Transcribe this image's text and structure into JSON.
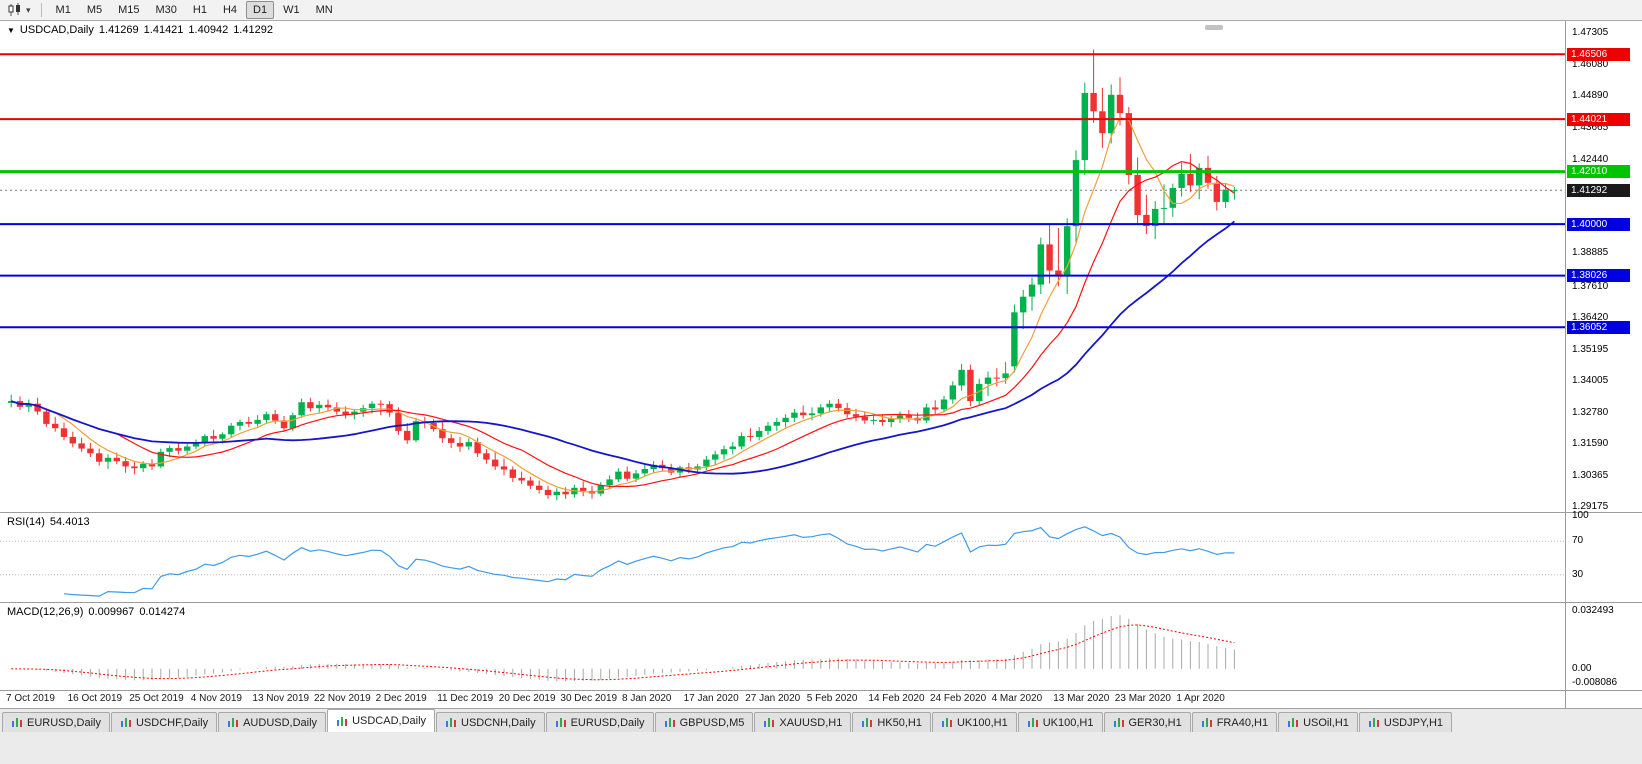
{
  "toolbar": {
    "timeframes": [
      "M1",
      "M5",
      "M15",
      "M30",
      "H1",
      "H4",
      "D1",
      "W1",
      "MN"
    ],
    "active_timeframe": "D1",
    "chart_type_icon": "candlestick-chart"
  },
  "chart": {
    "symbol_timeframe": "USDCAD,Daily",
    "open": "1.41269",
    "high": "1.41421",
    "low": "1.40942",
    "close": "1.41292"
  },
  "rsi": {
    "label": "RSI(14)",
    "value": "54.4013",
    "axis": [
      "100",
      "70",
      "30"
    ],
    "levels": [
      70,
      30
    ],
    "range": [
      0,
      100
    ],
    "color": "#3E9BEB"
  },
  "macd": {
    "label": "MACD(12,26,9)",
    "main_value": "0.009967",
    "signal_value": "0.014274",
    "axis": [
      "0.032493",
      "0.00",
      "-0.008086"
    ],
    "range": [
      -0.0096,
      0.0346
    ],
    "histogram_color": "#a8a8a8",
    "signal_color": "#FF0000"
  },
  "price_axis": {
    "regular": [
      "1.47305",
      "1.46080",
      "1.44890",
      "1.43665",
      "1.42440",
      "1.38885",
      "1.37610",
      "1.36420",
      "1.35195",
      "1.34005",
      "1.32780",
      "1.31590",
      "1.30365",
      "1.29175"
    ],
    "badges": [
      {
        "value": "1.46506",
        "color": "#EE0000",
        "text": "#ffffff"
      },
      {
        "value": "1.44021",
        "color": "#EE0000",
        "text": "#ffffff"
      },
      {
        "value": "1.42010",
        "color": "#00C400",
        "text": "#ffffff"
      },
      {
        "value": "1.41292",
        "color": "#1a1a1a",
        "text": "#ffffff"
      },
      {
        "value": "1.40000",
        "color": "#0000E0",
        "text": "#ffffff"
      },
      {
        "value": "1.38026",
        "color": "#0000E0",
        "text": "#ffffff"
      },
      {
        "value": "1.36052",
        "color": "#0000E0",
        "text": "#ffffff"
      }
    ]
  },
  "levels": [
    {
      "price": 1.46506,
      "color": "#EE0000",
      "width": 2
    },
    {
      "price": 1.44021,
      "color": "#EE0000",
      "width": 2
    },
    {
      "price": 1.4201,
      "color": "#00C400",
      "width": 3
    },
    {
      "price": 1.4,
      "color": "#0000E0",
      "width": 2
    },
    {
      "price": 1.38026,
      "color": "#0000E0",
      "width": 2
    },
    {
      "price": 1.36052,
      "color": "#0000E0",
      "width": 2
    }
  ],
  "bid": {
    "price": 1.41292,
    "label": "1.41292"
  },
  "chart_data": {
    "type": "candlestick",
    "symbol": "USDCAD",
    "timeframe": "Daily",
    "price_range": [
      1.2905,
      1.477
    ],
    "up_color": "#00B24B",
    "down_color": "#F03232",
    "rsi_period": 14,
    "macd_params": {
      "fast": 12,
      "slow": 26,
      "signal": 9
    },
    "moving_averages": [
      {
        "name": "ma-fast-line",
        "period": 6,
        "color": "#F0A038",
        "width": 1.2
      },
      {
        "name": "ma-mid-line",
        "period": 13,
        "color": "#FF1010",
        "width": 1.2
      },
      {
        "name": "ma-slow-line",
        "period": 30,
        "color": "#1616C8",
        "width": 1.8
      }
    ],
    "x_labels": [
      {
        "t": "7 Oct 2019",
        "i": 0
      },
      {
        "t": "16 Oct 2019",
        "i": 7
      },
      {
        "t": "25 Oct 2019",
        "i": 14
      },
      {
        "t": "4 Nov 2019",
        "i": 21
      },
      {
        "t": "13 Nov 2019",
        "i": 28
      },
      {
        "t": "22 Nov 2019",
        "i": 35
      },
      {
        "t": "2 Dec 2019",
        "i": 42
      },
      {
        "t": "11 Dec 2019",
        "i": 49
      },
      {
        "t": "20 Dec 2019",
        "i": 56
      },
      {
        "t": "30 Dec 2019",
        "i": 63
      },
      {
        "t": "8 Jan 2020",
        "i": 70
      },
      {
        "t": "17 Jan 2020",
        "i": 77
      },
      {
        "t": "27 Jan 2020",
        "i": 84
      },
      {
        "t": "5 Feb 2020",
        "i": 91
      },
      {
        "t": "14 Feb 2020",
        "i": 98
      },
      {
        "t": "24 Feb 2020",
        "i": 105
      },
      {
        "t": "4 Mar 2020",
        "i": 112
      },
      {
        "t": "13 Mar 2020",
        "i": 119
      },
      {
        "t": "23 Mar 2020",
        "i": 126
      },
      {
        "t": "1 Apr 2020",
        "i": 133
      }
    ],
    "candles": [
      [
        1.3315,
        1.3347,
        1.3298,
        1.3322
      ],
      [
        1.3322,
        1.334,
        1.3288,
        1.33
      ],
      [
        1.33,
        1.3328,
        1.328,
        1.3312
      ],
      [
        1.3312,
        1.3335,
        1.327,
        1.3282
      ],
      [
        1.3282,
        1.3295,
        1.3222,
        1.3235
      ],
      [
        1.3235,
        1.3262,
        1.3205,
        1.3218
      ],
      [
        1.3218,
        1.324,
        1.3172,
        1.3185
      ],
      [
        1.3185,
        1.3205,
        1.3145,
        1.316
      ],
      [
        1.316,
        1.3182,
        1.3128,
        1.314
      ],
      [
        1.314,
        1.3162,
        1.3108,
        1.3122
      ],
      [
        1.3122,
        1.314,
        1.3075,
        1.309
      ],
      [
        1.309,
        1.3118,
        1.3062,
        1.3105
      ],
      [
        1.3105,
        1.3125,
        1.308,
        1.3092
      ],
      [
        1.3092,
        1.3108,
        1.3048,
        1.3072
      ],
      [
        1.3072,
        1.309,
        1.3042,
        1.3065
      ],
      [
        1.3065,
        1.3092,
        1.305,
        1.3082
      ],
      [
        1.3082,
        1.31,
        1.3058,
        1.3072
      ],
      [
        1.3072,
        1.314,
        1.3065,
        1.3128
      ],
      [
        1.3128,
        1.3152,
        1.3108,
        1.3142
      ],
      [
        1.3142,
        1.3165,
        1.3118,
        1.3132
      ],
      [
        1.3132,
        1.3158,
        1.312,
        1.3148
      ],
      [
        1.3148,
        1.3175,
        1.3138,
        1.316
      ],
      [
        1.316,
        1.3195,
        1.3148,
        1.3188
      ],
      [
        1.3188,
        1.3212,
        1.3165,
        1.3178
      ],
      [
        1.3178,
        1.3202,
        1.316,
        1.3195
      ],
      [
        1.3195,
        1.3238,
        1.3185,
        1.3228
      ],
      [
        1.3228,
        1.3252,
        1.321,
        1.3242
      ],
      [
        1.3242,
        1.3262,
        1.3222,
        1.3235
      ],
      [
        1.3235,
        1.3268,
        1.3225,
        1.325
      ],
      [
        1.325,
        1.3282,
        1.3238,
        1.3272
      ],
      [
        1.3272,
        1.3288,
        1.3235,
        1.3248
      ],
      [
        1.3248,
        1.3265,
        1.3205,
        1.3218
      ],
      [
        1.3218,
        1.3278,
        1.3208,
        1.3268
      ],
      [
        1.3268,
        1.3332,
        1.3258,
        1.3318
      ],
      [
        1.3318,
        1.3335,
        1.3282,
        1.3295
      ],
      [
        1.3295,
        1.3322,
        1.3278,
        1.3308
      ],
      [
        1.3308,
        1.3328,
        1.3285,
        1.3298
      ],
      [
        1.3298,
        1.3318,
        1.327,
        1.3282
      ],
      [
        1.3282,
        1.3302,
        1.3255,
        1.327
      ],
      [
        1.327,
        1.3292,
        1.3252,
        1.3282
      ],
      [
        1.3282,
        1.3308,
        1.3262,
        1.3295
      ],
      [
        1.3295,
        1.3322,
        1.3275,
        1.3312
      ],
      [
        1.3312,
        1.3325,
        1.3268,
        1.331
      ],
      [
        1.331,
        1.3322,
        1.3262,
        1.3278
      ],
      [
        1.3278,
        1.3298,
        1.3192,
        1.3208
      ],
      [
        1.3208,
        1.3238,
        1.3158,
        1.3172
      ],
      [
        1.3172,
        1.3258,
        1.3165,
        1.3245
      ],
      [
        1.3245,
        1.3262,
        1.3218,
        1.3238
      ],
      [
        1.3238,
        1.3252,
        1.3205,
        1.3215
      ],
      [
        1.3215,
        1.3242,
        1.3162,
        1.318
      ],
      [
        1.318,
        1.3195,
        1.3142,
        1.3162
      ],
      [
        1.3162,
        1.3185,
        1.3128,
        1.3148
      ],
      [
        1.3148,
        1.318,
        1.3135,
        1.3165
      ],
      [
        1.3165,
        1.3182,
        1.3108,
        1.3122
      ],
      [
        1.3122,
        1.3138,
        1.3082,
        1.3098
      ],
      [
        1.3098,
        1.3128,
        1.3058,
        1.3072
      ],
      [
        1.3072,
        1.3102,
        1.3038,
        1.306
      ],
      [
        1.306,
        1.3072,
        1.3012,
        1.3028
      ],
      [
        1.3028,
        1.3052,
        1.3005,
        1.3018
      ],
      [
        1.3018,
        1.3032,
        1.2985,
        1.2998
      ],
      [
        1.2998,
        1.3018,
        1.2968,
        1.2982
      ],
      [
        1.2982,
        1.2998,
        1.2948,
        1.2962
      ],
      [
        1.2962,
        1.2988,
        1.2942,
        1.2975
      ],
      [
        1.2975,
        1.2992,
        1.2948,
        1.2965
      ],
      [
        1.2965,
        1.3002,
        1.2952,
        1.299
      ],
      [
        1.299,
        1.3015,
        1.2958,
        1.2978
      ],
      [
        1.2978,
        1.2998,
        1.2948,
        1.2968
      ],
      [
        1.2968,
        1.3012,
        1.2958,
        1.3
      ],
      [
        1.3,
        1.3038,
        1.2988,
        1.3022
      ],
      [
        1.3022,
        1.3065,
        1.3012,
        1.3052
      ],
      [
        1.3052,
        1.3072,
        1.3015,
        1.3025
      ],
      [
        1.3025,
        1.3058,
        1.3012,
        1.3045
      ],
      [
        1.3045,
        1.3078,
        1.3035,
        1.3062
      ],
      [
        1.3062,
        1.3092,
        1.3048,
        1.3078
      ],
      [
        1.3078,
        1.3095,
        1.3052,
        1.3065
      ],
      [
        1.3065,
        1.3082,
        1.3038,
        1.3048
      ],
      [
        1.3048,
        1.3075,
        1.3032,
        1.3068
      ],
      [
        1.3068,
        1.3085,
        1.3045,
        1.306
      ],
      [
        1.306,
        1.3082,
        1.3042,
        1.3072
      ],
      [
        1.3072,
        1.3112,
        1.3058,
        1.3098
      ],
      [
        1.3098,
        1.3132,
        1.3078,
        1.3118
      ],
      [
        1.3118,
        1.3152,
        1.3098,
        1.3138
      ],
      [
        1.3138,
        1.3165,
        1.3118,
        1.3148
      ],
      [
        1.3148,
        1.3202,
        1.3138,
        1.3188
      ],
      [
        1.3188,
        1.3218,
        1.3168,
        1.3185
      ],
      [
        1.3185,
        1.3222,
        1.3172,
        1.3208
      ],
      [
        1.3208,
        1.3242,
        1.3192,
        1.3228
      ],
      [
        1.3228,
        1.3258,
        1.3208,
        1.3242
      ],
      [
        1.3242,
        1.3272,
        1.3222,
        1.3258
      ],
      [
        1.3258,
        1.3292,
        1.3242,
        1.3278
      ],
      [
        1.3278,
        1.3305,
        1.3255,
        1.3268
      ],
      [
        1.3268,
        1.3298,
        1.3248,
        1.3275
      ],
      [
        1.3275,
        1.331,
        1.3262,
        1.3298
      ],
      [
        1.3298,
        1.3325,
        1.3278,
        1.3312
      ],
      [
        1.3312,
        1.333,
        1.3282,
        1.3295
      ],
      [
        1.3295,
        1.3315,
        1.3258,
        1.3272
      ],
      [
        1.3272,
        1.3292,
        1.3245,
        1.3262
      ],
      [
        1.3262,
        1.3282,
        1.3235,
        1.3248
      ],
      [
        1.3248,
        1.3275,
        1.3232,
        1.325
      ],
      [
        1.325,
        1.3272,
        1.3228,
        1.3242
      ],
      [
        1.3242,
        1.3265,
        1.3222,
        1.3255
      ],
      [
        1.3255,
        1.3282,
        1.3238,
        1.3268
      ],
      [
        1.3268,
        1.3288,
        1.3242,
        1.3258
      ],
      [
        1.3258,
        1.3278,
        1.3235,
        1.3248
      ],
      [
        1.3248,
        1.3312,
        1.3238,
        1.3298
      ],
      [
        1.3298,
        1.3325,
        1.3272,
        1.329
      ],
      [
        1.329,
        1.3342,
        1.3278,
        1.3328
      ],
      [
        1.3328,
        1.3398,
        1.3312,
        1.3382
      ],
      [
        1.3382,
        1.3465,
        1.3362,
        1.3442
      ],
      [
        1.3442,
        1.3462,
        1.3302,
        1.3322
      ],
      [
        1.3322,
        1.3408,
        1.3305,
        1.3388
      ],
      [
        1.3388,
        1.3435,
        1.3342,
        1.3412
      ],
      [
        1.3412,
        1.3448,
        1.3378,
        1.341
      ],
      [
        1.341,
        1.3472,
        1.3388,
        1.3428
      ],
      [
        1.3455,
        1.3692,
        1.3432,
        1.3662
      ],
      [
        1.3662,
        1.3748,
        1.3598,
        1.3722
      ],
      [
        1.3722,
        1.3795,
        1.3668,
        1.3768
      ],
      [
        1.3768,
        1.3948,
        1.3732,
        1.3922
      ],
      [
        1.3922,
        1.3998,
        1.3772,
        1.3822
      ],
      [
        1.3822,
        1.3985,
        1.3762,
        1.38
      ],
      [
        1.38,
        1.4022,
        1.3732,
        1.3992
      ],
      [
        1.3992,
        1.4282,
        1.3928,
        1.4245
      ],
      [
        1.4245,
        1.4542,
        1.4188,
        1.4502
      ],
      [
        1.4502,
        1.4668,
        1.4388,
        1.4432
      ],
      [
        1.4432,
        1.4522,
        1.4292,
        1.4348
      ],
      [
        1.4348,
        1.4535,
        1.4308,
        1.4495
      ],
      [
        1.4495,
        1.4562,
        1.4378,
        1.4425
      ],
      [
        1.4425,
        1.4448,
        1.4152,
        1.4188
      ],
      [
        1.4188,
        1.4255,
        1.3998,
        1.4035
      ],
      [
        1.4035,
        1.4112,
        1.3962,
        1.3992
      ],
      [
        1.3992,
        1.4088,
        1.3942,
        1.4058
      ],
      [
        1.4058,
        1.4152,
        1.4002,
        1.4062
      ],
      [
        1.4062,
        1.4155,
        1.4028,
        1.4138
      ],
      [
        1.4138,
        1.4235,
        1.4105,
        1.4192
      ],
      [
        1.4192,
        1.4268,
        1.4122,
        1.4148
      ],
      [
        1.4148,
        1.4232,
        1.4095,
        1.4215
      ],
      [
        1.4215,
        1.4262,
        1.4135,
        1.4158
      ],
      [
        1.4158,
        1.4185,
        1.4052,
        1.4085
      ],
      [
        1.4085,
        1.4158,
        1.4062,
        1.4132
      ],
      [
        1.41269,
        1.41421,
        1.40942,
        1.41292
      ]
    ]
  },
  "tabs": {
    "items": [
      "EURUSD,Daily",
      "USDCHF,Daily",
      "AUDUSD,Daily",
      "USDCAD,Daily",
      "USDCNH,Daily",
      "EURUSD,Daily",
      "GBPUSD,M5",
      "XAUUSD,H1",
      "HK50,H1",
      "UK100,H1",
      "UK100,H1",
      "GER30,H1",
      "FRA40,H1",
      "USOil,H1",
      "USDJPY,H1"
    ],
    "active_index": 3
  }
}
